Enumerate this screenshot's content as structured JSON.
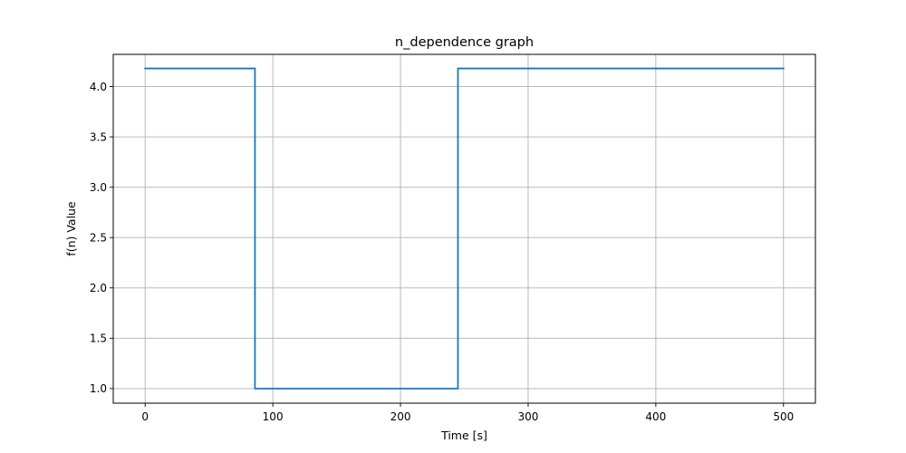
{
  "chart_data": {
    "type": "line",
    "title": "n_dependence graph",
    "xlabel": "Time [s]",
    "ylabel": "f(n) Value",
    "xlim": [
      -25,
      525
    ],
    "ylim": [
      0.855,
      4.32
    ],
    "xticks": [
      0,
      100,
      200,
      300,
      400,
      500
    ],
    "xtick_labels": [
      "0",
      "100",
      "200",
      "300",
      "400",
      "500"
    ],
    "yticks": [
      1.0,
      1.5,
      2.0,
      2.5,
      3.0,
      3.5,
      4.0
    ],
    "ytick_labels": [
      "1.0",
      "1.5",
      "2.0",
      "2.5",
      "3.0",
      "3.5",
      "4.0"
    ],
    "grid": true,
    "series": [
      {
        "color": "#1f77b4",
        "step": true,
        "x": [
          0,
          86,
          86,
          245,
          245,
          500
        ],
        "y": [
          4.18,
          4.18,
          1.0,
          1.0,
          4.18,
          4.18
        ]
      }
    ]
  }
}
